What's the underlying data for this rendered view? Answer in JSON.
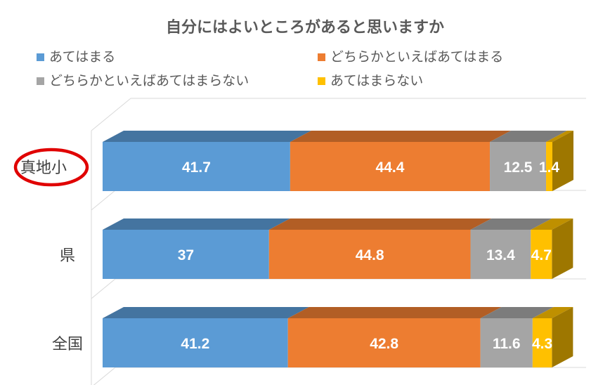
{
  "chart_data": {
    "type": "bar",
    "orientation": "horizontal",
    "stacked": true,
    "style": "3d",
    "title": "自分にはよいところがあると思いますか",
    "categories": [
      "真地小",
      "県",
      "全国"
    ],
    "highlighted_category": "真地小",
    "highlight_color": "#e00000",
    "xlim": [
      0,
      100
    ],
    "legend_position": "top",
    "series": [
      {
        "name": "あてはまる",
        "color": "#5b9bd5",
        "values": [
          41.7,
          37,
          41.2
        ]
      },
      {
        "name": "どちらかといえばあてはまる",
        "color": "#ed7d31",
        "values": [
          44.4,
          44.8,
          42.8
        ]
      },
      {
        "name": "どちらかといえばあてはまらない",
        "color": "#a5a5a5",
        "values": [
          12.5,
          13.4,
          11.6
        ]
      },
      {
        "name": "あてはまらない",
        "color": "#ffc000",
        "values": [
          1.4,
          4.7,
          4.3
        ]
      }
    ]
  }
}
